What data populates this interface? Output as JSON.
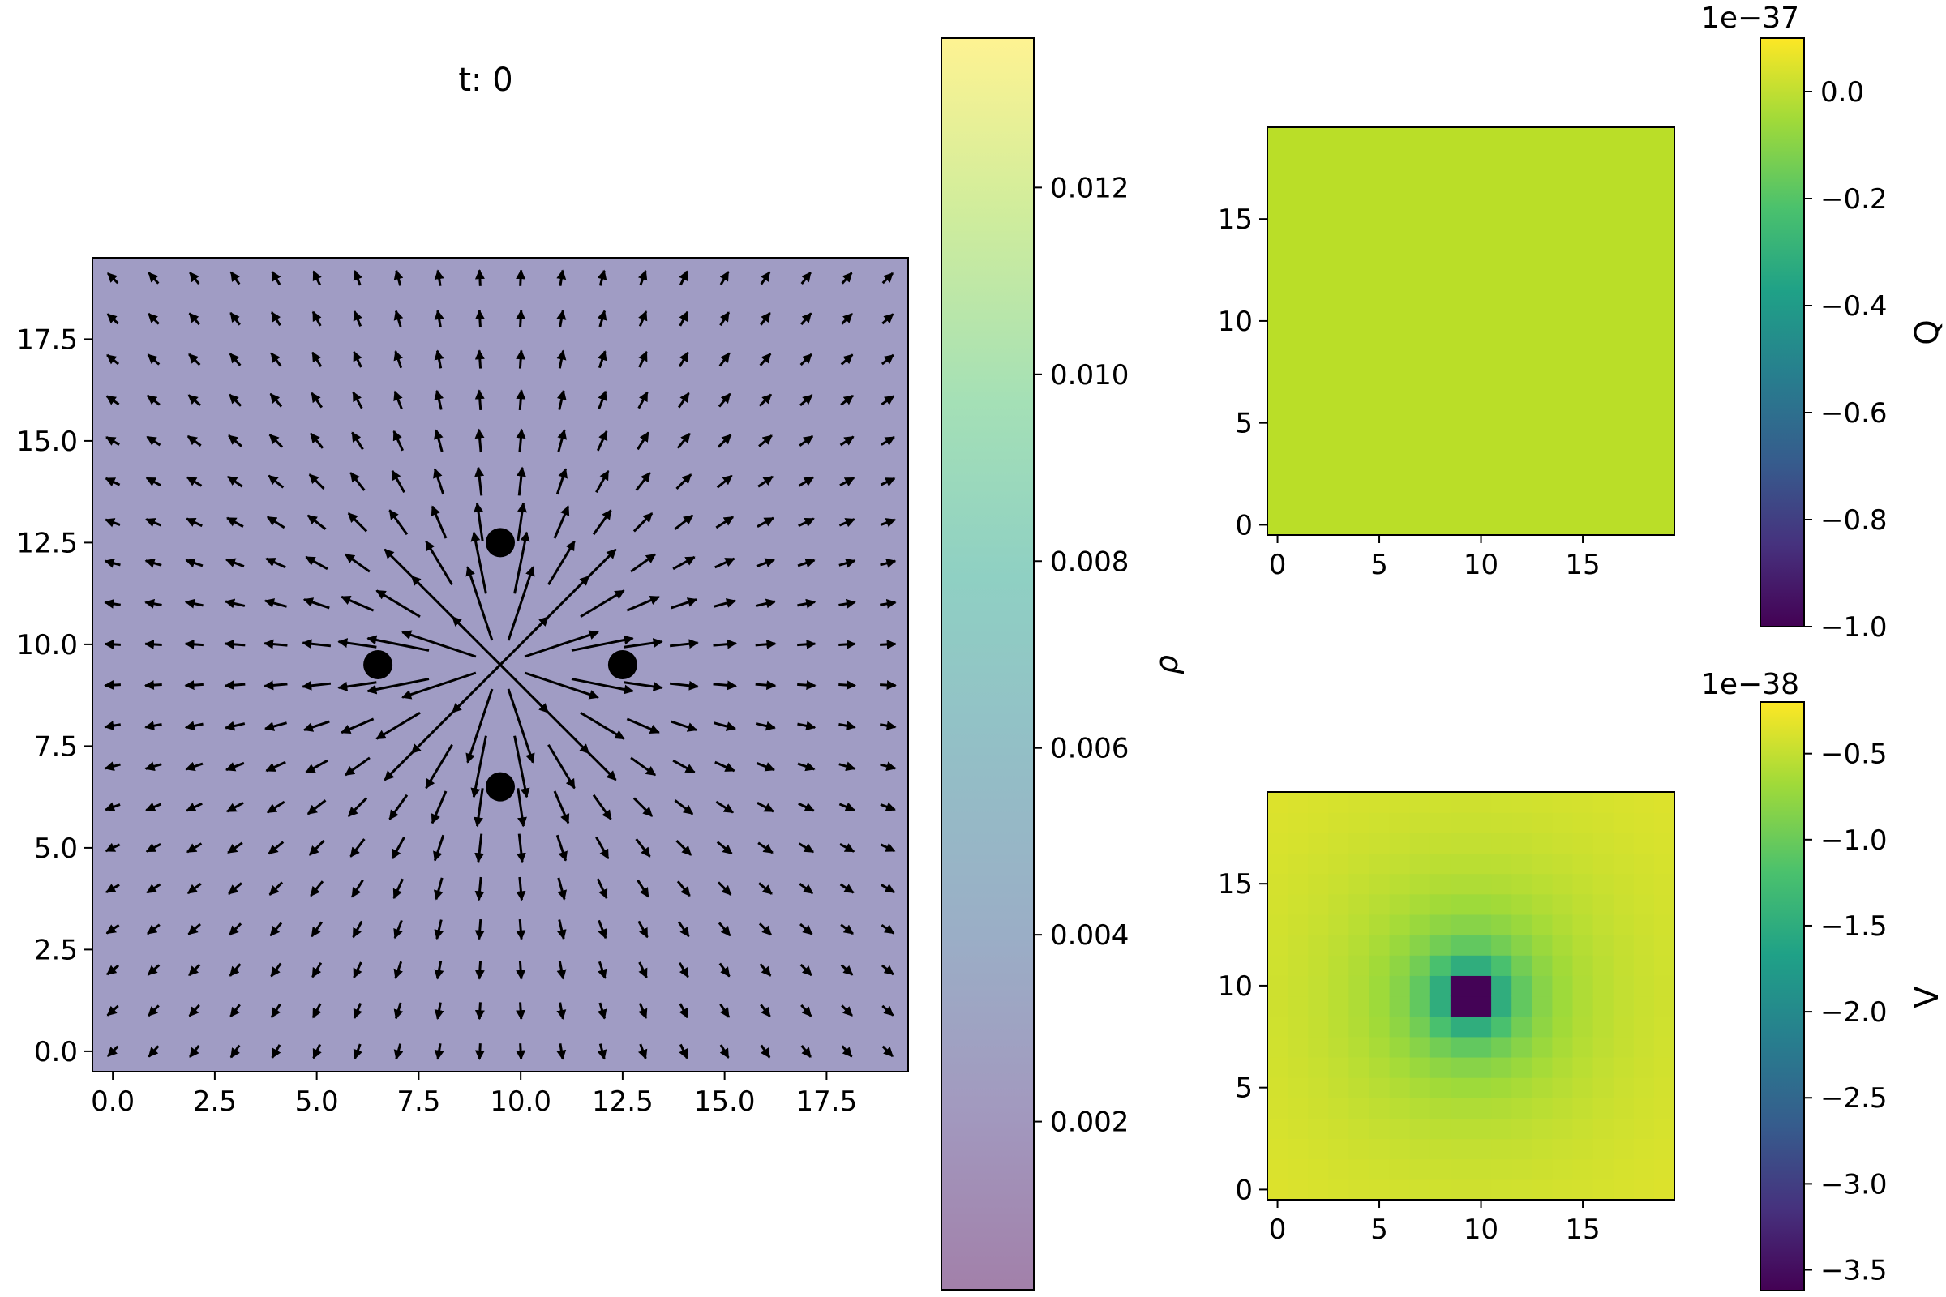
{
  "chart_data": [
    {
      "type": "quiver",
      "title": "t: 0",
      "xlim": [
        -0.5,
        19.5
      ],
      "ylim": [
        -0.5,
        19.5
      ],
      "xticks": [
        "0.0",
        "2.5",
        "5.0",
        "7.5",
        "10.0",
        "12.5",
        "15.0",
        "17.5"
      ],
      "yticks": [
        "0.0",
        "2.5",
        "5.0",
        "7.5",
        "10.0",
        "12.5",
        "15.0",
        "17.5"
      ],
      "grid": false,
      "background_value": 0.0044,
      "background_color": "#a09cc4",
      "arrow_color": "#000000",
      "field": {
        "grid_x": [
          0,
          19
        ],
        "grid_y": [
          0,
          19
        ],
        "pattern": "radial outward from center (9.5, 9.5), magnitude decaying with distance",
        "center": [
          9.5,
          9.5
        ]
      },
      "charges": [
        {
          "x": 6.5,
          "y": 9.5
        },
        {
          "x": 9.5,
          "y": 12.5
        },
        {
          "x": 12.5,
          "y": 9.5
        },
        {
          "x": 9.5,
          "y": 6.5
        }
      ],
      "colorbar": {
        "label": "ρ",
        "ticks": [
          "0.002",
          "0.004",
          "0.006",
          "0.008",
          "0.010",
          "0.012"
        ],
        "range": [
          0.0002,
          0.0136
        ],
        "colormap": "viridis",
        "alpha": 0.5
      }
    },
    {
      "type": "heatmap",
      "xlim": [
        -0.5,
        19.5
      ],
      "ylim": [
        -0.5,
        19.5
      ],
      "xticks": [
        "0",
        "5",
        "10",
        "15"
      ],
      "yticks": [
        "0",
        "5",
        "10",
        "15"
      ],
      "uniform_value": 0.0,
      "fill_color": "#bade28",
      "colorbar": {
        "label": "Q",
        "offset_text": "1e−37",
        "ticks": [
          "0.0",
          "−0.2",
          "−0.4",
          "−0.6",
          "−0.8",
          "−1.0"
        ],
        "range": [
          -1.0,
          0.1
        ],
        "colormap": "viridis"
      }
    },
    {
      "type": "heatmap",
      "xlim": [
        -0.5,
        19.5
      ],
      "ylim": [
        -0.5,
        19.5
      ],
      "xticks": [
        "0",
        "5",
        "10",
        "15"
      ],
      "yticks": [
        "0",
        "5",
        "10",
        "15"
      ],
      "field": "potential well centered at (9.5, 9.5), minimum ≈ -3.6e-38, edges ≈ -0.28e-38",
      "colorbar": {
        "label": "V",
        "offset_text": "1e−38",
        "ticks": [
          "−0.5",
          "−1.0",
          "−1.5",
          "−2.0",
          "−2.5",
          "−3.0",
          "−3.5"
        ],
        "range": [
          -3.62,
          -0.2
        ],
        "colormap": "viridis"
      }
    }
  ]
}
